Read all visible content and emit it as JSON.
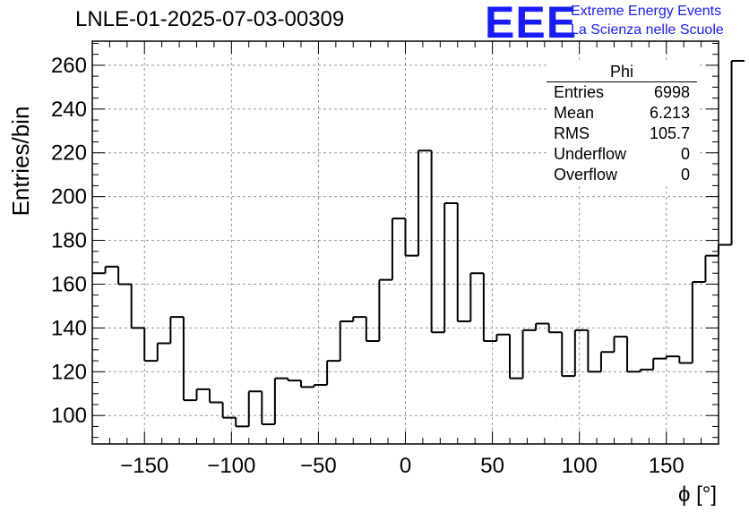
{
  "header": {
    "title": "LNLE-01-2025-07-03-00309",
    "logo_text": "EEE",
    "logo_line1": "Extreme Energy Events",
    "logo_line2": "La Scienza nelle Scuole"
  },
  "stats": {
    "title": "Phi",
    "rows": [
      {
        "label": "Entries",
        "value": "6998"
      },
      {
        "label": "Mean",
        "value": "6.213"
      },
      {
        "label": "RMS",
        "value": "105.7"
      },
      {
        "label": "Underflow",
        "value": "0"
      },
      {
        "label": "Overflow",
        "value": "0"
      }
    ]
  },
  "chart_data": {
    "type": "histogram",
    "title": "LNLE-01-2025-07-03-00309",
    "xlabel": "ϕ [°]",
    "ylabel": "Entries/bin",
    "xlim": [
      -180,
      180
    ],
    "ylim": [
      87,
      271
    ],
    "bin_width": 7.5,
    "grid": true,
    "xticks": [
      -150,
      -100,
      -50,
      0,
      50,
      100,
      150
    ],
    "yticks": [
      100,
      120,
      140,
      160,
      180,
      200,
      220,
      240,
      260
    ],
    "values": [
      165,
      168,
      160,
      140,
      125,
      133,
      145,
      107,
      112,
      106,
      99,
      95,
      111,
      96,
      117,
      116,
      113,
      114,
      125,
      143,
      145,
      134,
      162,
      190,
      173,
      221,
      138,
      197,
      143,
      165,
      134,
      137,
      117,
      139,
      142,
      138,
      118,
      139,
      120,
      129,
      136,
      120,
      121,
      126,
      127,
      124,
      161,
      173,
      178,
      262
    ]
  }
}
